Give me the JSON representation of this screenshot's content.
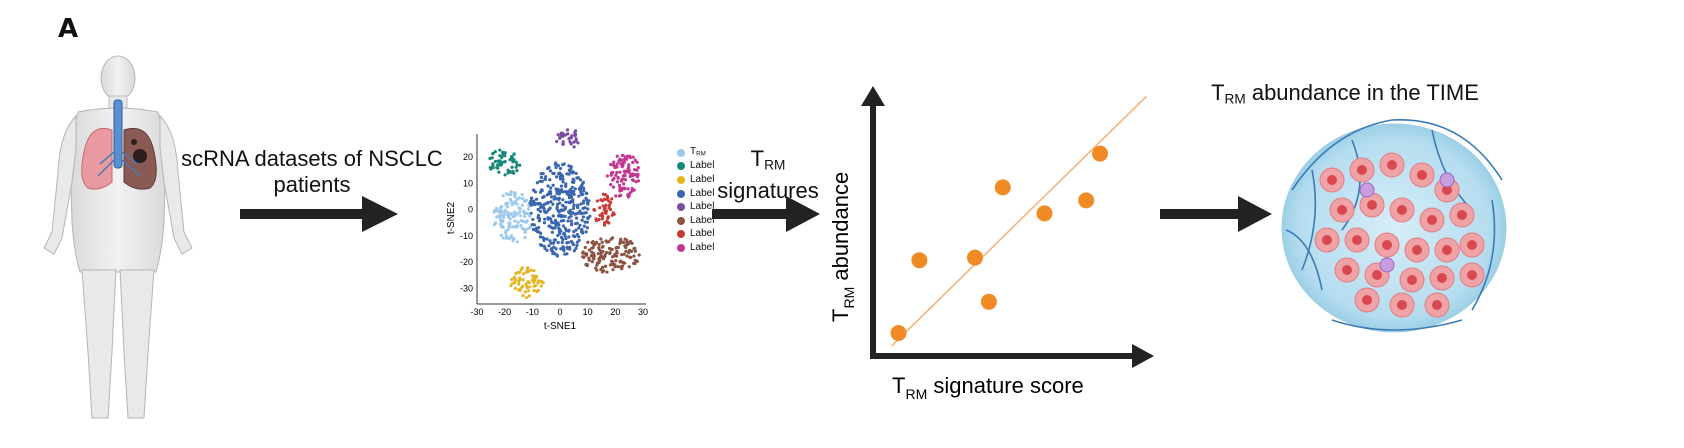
{
  "panel_letter": "A",
  "step1": {
    "line1": "scRNA datasets of NSCLC",
    "line2": "patients"
  },
  "step2": {
    "t": "T",
    "rm": "RM",
    "line2": "signatures"
  },
  "step3_title": {
    "t": "T",
    "rm": "RM",
    "rest": " abundance in the TIME"
  },
  "scatter": {
    "ylabel_t": "T",
    "ylabel_rm": "RM",
    "ylabel_rest": " abundance",
    "xlabel_t": "T",
    "xlabel_rm": "RM",
    "xlabel_rest": " signature score",
    "point_color": "#f08a24",
    "fit_color": "#f5b57a"
  },
  "chart_data": {
    "type": "scatter",
    "title": "",
    "xlabel": "TRM signature score",
    "ylabel": "TRM abundance",
    "points": [
      {
        "x": 0.08,
        "y": 0.05
      },
      {
        "x": 0.17,
        "y": 0.33
      },
      {
        "x": 0.41,
        "y": 0.34
      },
      {
        "x": 0.47,
        "y": 0.17
      },
      {
        "x": 0.53,
        "y": 0.61
      },
      {
        "x": 0.71,
        "y": 0.51
      },
      {
        "x": 0.89,
        "y": 0.56
      },
      {
        "x": 0.95,
        "y": 0.74
      }
    ],
    "fit_line": {
      "x": [
        0.05,
        1.15
      ],
      "y": [
        0.0,
        0.96
      ]
    },
    "xlim": [
      0,
      1.2
    ],
    "ylim": [
      0,
      1.0
    ],
    "grid": false
  },
  "tsne": {
    "xlabel": "t-SNE1",
    "ylabel": "t-SNE2",
    "x_ticks": [
      "-30",
      "-20",
      "-10",
      "0",
      "10",
      "20",
      "30"
    ],
    "y_ticks": [
      "20",
      "10",
      "0",
      "-10",
      "-20",
      "-30"
    ],
    "legend": [
      {
        "t": "T",
        "rm": "RM",
        "label": "",
        "color": "#9cc9ec"
      },
      {
        "t": "",
        "rm": "",
        "label": "Label",
        "color": "#17877a"
      },
      {
        "t": "",
        "rm": "",
        "label": "Label",
        "color": "#e3b520"
      },
      {
        "t": "",
        "rm": "",
        "label": "Label",
        "color": "#3a66b0"
      },
      {
        "t": "",
        "rm": "",
        "label": "Label",
        "color": "#7d4ba2"
      },
      {
        "t": "",
        "rm": "",
        "label": "Label",
        "color": "#8b5342"
      },
      {
        "t": "",
        "rm": "",
        "label": "Label",
        "color": "#c93a34"
      },
      {
        "t": "",
        "rm": "",
        "label": "Label",
        "color": "#c3368f"
      }
    ],
    "clusters": [
      {
        "color": "#9cc9ec",
        "cx": -17,
        "cy": -3,
        "rx": 7,
        "ry": 10
      },
      {
        "color": "#17877a",
        "cx": -20,
        "cy": 18,
        "rx": 6,
        "ry": 5
      },
      {
        "color": "#e3b520",
        "cx": -12,
        "cy": -28,
        "rx": 6,
        "ry": 6
      },
      {
        "color": "#3a66b0",
        "cx": 0,
        "cy": 0,
        "rx": 11,
        "ry": 18
      },
      {
        "color": "#7d4ba2",
        "cx": 3,
        "cy": 27,
        "rx": 5,
        "ry": 3.5
      },
      {
        "color": "#8b5342",
        "cx": 18,
        "cy": -17,
        "rx": 11,
        "ry": 7
      },
      {
        "color": "#c93a34",
        "cx": 16,
        "cy": 0,
        "rx": 4,
        "ry": 6
      },
      {
        "color": "#c3368f",
        "cx": 23,
        "cy": 13,
        "rx": 6,
        "ry": 9
      }
    ]
  }
}
